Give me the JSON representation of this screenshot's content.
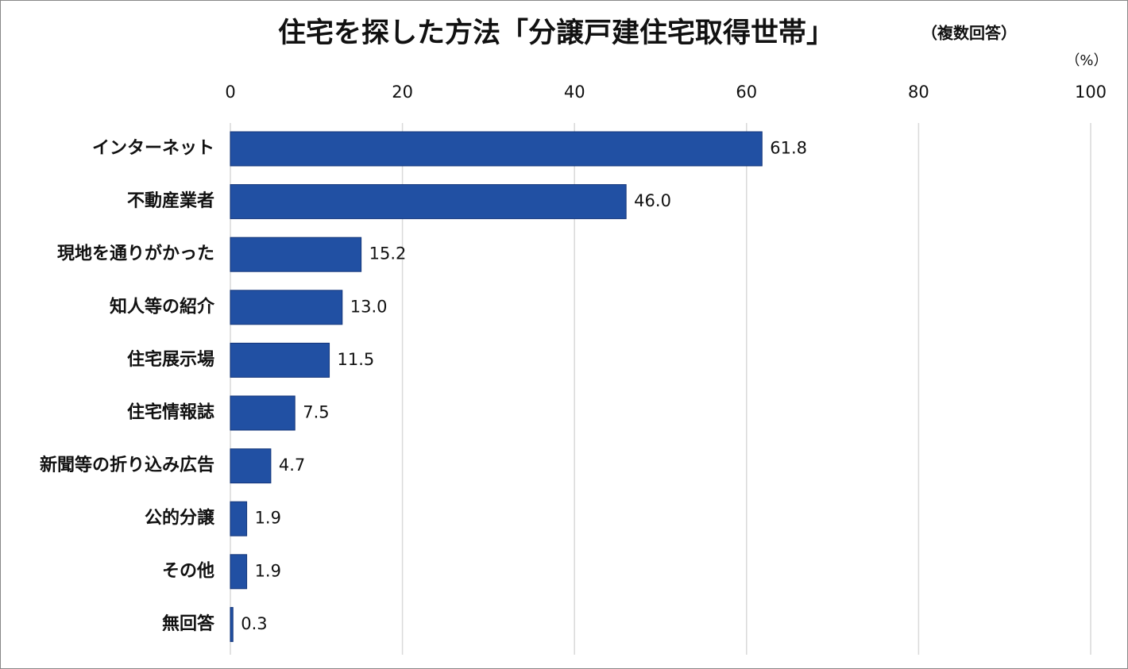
{
  "chart_data": {
    "type": "hbar",
    "title": "住宅を探した方法「分譲戸建住宅取得世帯」",
    "subtitle": "（複数回答）",
    "unit_label": "（%）",
    "categories": [
      "インターネット",
      "不動産業者",
      "現地を通りがかった",
      "知人等の紹介",
      "住宅展示場",
      "住宅情報誌",
      "新聞等の折り込み広告",
      "公的分譲",
      "その他",
      "無回答"
    ],
    "values": [
      61.8,
      46.0,
      15.2,
      13.0,
      11.5,
      7.5,
      4.7,
      1.9,
      1.9,
      0.3
    ],
    "value_labels": [
      "61.8",
      "46.0",
      "15.2",
      "13.0",
      "11.5",
      "7.5",
      "4.7",
      "1.9",
      "1.9",
      "0.3"
    ],
    "color": "#2150a3",
    "xlim": [
      0,
      100
    ],
    "xticks": [
      0,
      20,
      40,
      60,
      80,
      100
    ],
    "grid": true
  }
}
